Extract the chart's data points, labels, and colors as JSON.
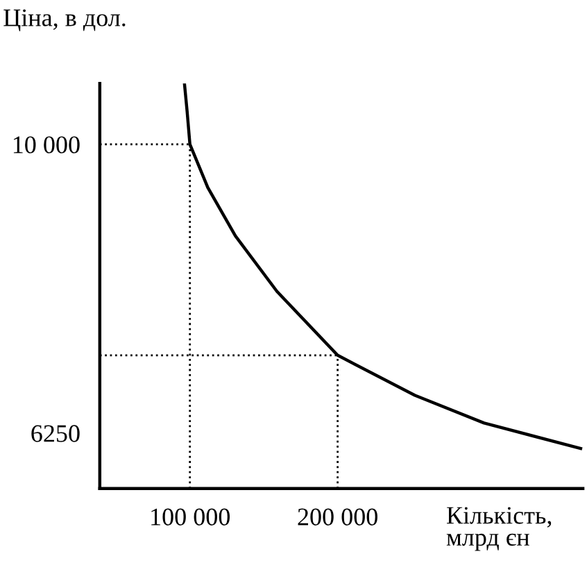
{
  "chart_data": {
    "type": "line",
    "ylabel": "Ціна, в дол.",
    "xlabel": "Кількість,\nмлрд єн",
    "series": [
      {
        "color": "#000000",
        "x": [
          96300,
          98100,
          100000,
          112100,
          130800,
          158900,
          200000,
          252300,
          299100,
          364500
        ],
        "values": [
          10790,
          10430,
          10000,
          9440,
          8810,
          8090,
          7260,
          6740,
          6380,
          6050
        ]
      }
    ],
    "xlim": [
      39000,
      366000
    ],
    "ylim": [
      5530,
      10790
    ],
    "xticks": [
      {
        "value": 100000,
        "label": "100 000"
      },
      {
        "value": 200000,
        "label": "200 000"
      }
    ],
    "yticks": [
      {
        "value": 10000,
        "label": "10 000"
      },
      6250
    ],
    "ref_lines": [
      {
        "axis": "x",
        "value": 100000,
        "color": "#000000",
        "line_style": "dotted"
      },
      {
        "axis": "x",
        "value": 200000,
        "color": "#000000",
        "line_style": "dotted"
      },
      {
        "axis": "y",
        "value": 10000,
        "color": "#000000",
        "line_style": "dotted"
      },
      {
        "axis": "y",
        "value": 7260,
        "color": "#000000",
        "line_style": "dotted"
      }
    ],
    "grid": false,
    "marker": "none",
    "line_style": "solid"
  }
}
